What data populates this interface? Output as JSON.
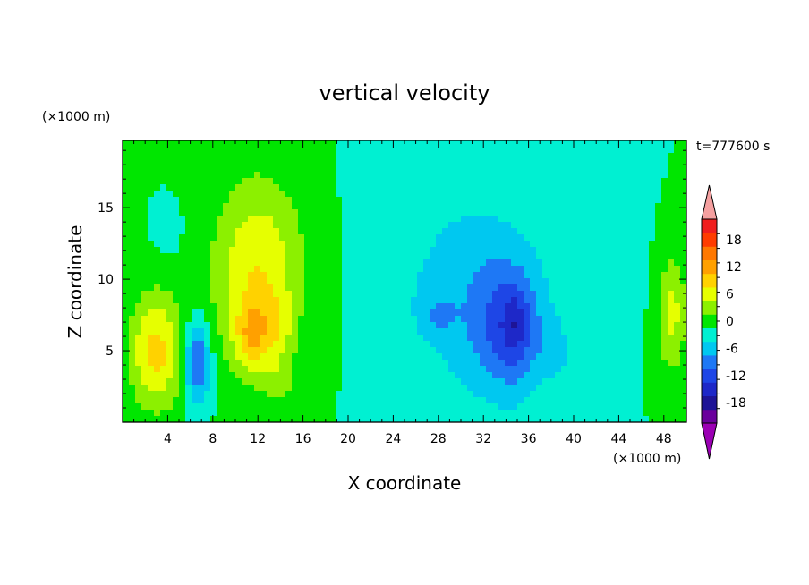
{
  "chart_data": {
    "type": "heatmap",
    "title": "vertical velocity",
    "xlabel": "X coordinate",
    "ylabel": "Z coordinate",
    "x_unit": "(×1000 m)",
    "y_unit": "(×1000 m)",
    "time_label": "t=777600 s",
    "xlim": [
      0,
      50
    ],
    "ylim": [
      0,
      19.7
    ],
    "x_ticks": [
      4,
      8,
      12,
      16,
      20,
      24,
      28,
      32,
      36,
      40,
      44,
      48
    ],
    "y_ticks": [
      5,
      10,
      15
    ],
    "colorbar": {
      "levels": [
        -21,
        -18,
        -15,
        -12,
        -9,
        -6,
        -3,
        0,
        3,
        6,
        9,
        12,
        15,
        18,
        21
      ],
      "tick_labels": [
        18,
        12,
        6,
        0,
        -6,
        -12,
        -18
      ],
      "colors": [
        "#6a009c",
        "#1e1496",
        "#1e28c8",
        "#1e46e6",
        "#1e78f5",
        "#00c8f0",
        "#00f0d2",
        "#00e600",
        "#8cf000",
        "#e6ff00",
        "#ffd200",
        "#ffa000",
        "#ff7800",
        "#ff3c00",
        "#f01e1e"
      ],
      "over_color": "#f5a0a0",
      "under_color": "#9b00b4"
    },
    "blobs": [
      {
        "x": 3.0,
        "z": 5.0,
        "sx": 2.4,
        "sz": 4.0,
        "amp": 10
      },
      {
        "x": 6.6,
        "z": 4.2,
        "sx": 1.1,
        "sz": 2.8,
        "amp": -11
      },
      {
        "x": 12.0,
        "z": 10.5,
        "sx": 4.0,
        "sz": 6.5,
        "amp": 9
      },
      {
        "x": 11.5,
        "z": 6.0,
        "sx": 1.6,
        "sz": 2.3,
        "amp": 8
      },
      {
        "x": 13.8,
        "z": 6.5,
        "sx": 1.2,
        "sz": 2.3,
        "amp": 4
      },
      {
        "x": 14.0,
        "z": 2.8,
        "sx": 1.5,
        "sz": 1.6,
        "amp": 3
      },
      {
        "x": 4.0,
        "z": 13.5,
        "sx": 1.0,
        "sz": 1.5,
        "amp": -3
      },
      {
        "x": 31.0,
        "z": 9.0,
        "sx": 6.0,
        "sz": 7.5,
        "amp": -5
      },
      {
        "x": 34.5,
        "z": 6.5,
        "sx": 3.0,
        "sz": 4.5,
        "amp": -8
      },
      {
        "x": 34.8,
        "z": 6.8,
        "sx": 1.0,
        "sz": 2.2,
        "amp": -4
      },
      {
        "x": 28.0,
        "z": 7.5,
        "sx": 1.5,
        "sz": 1.5,
        "amp": -3
      },
      {
        "x": 38.5,
        "z": 5.0,
        "sx": 1.5,
        "sz": 2.0,
        "amp": -3
      },
      {
        "x": 48.7,
        "z": 7.5,
        "sx": 1.3,
        "sz": 4.0,
        "amp": 7
      },
      {
        "x": 23.0,
        "z": 12.0,
        "sx": 2.5,
        "sz": 7.0,
        "amp": -2
      },
      {
        "x": 44.0,
        "z": 12.0,
        "sx": 2.0,
        "sz": 6.0,
        "amp": -2
      }
    ]
  }
}
